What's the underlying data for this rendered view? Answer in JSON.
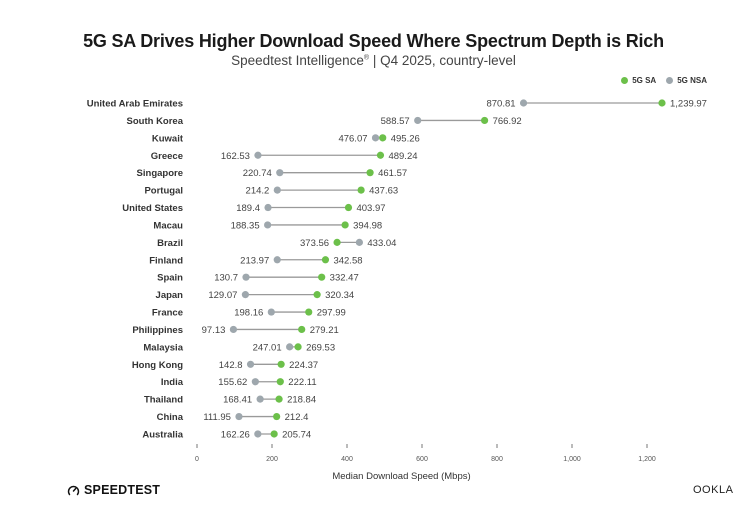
{
  "chart_data": {
    "type": "dumbbell",
    "title": "5G SA Drives Higher Download Speed Where Spectrum Depth is Rich",
    "subtitle_main": "Speedtest Intelligence",
    "subtitle_mark": "®",
    "subtitle_rest": " | Q4 2025, country-level",
    "xlabel": "Median Download Speed (Mbps)",
    "ylabel": "",
    "xlim": [
      0,
      1300
    ],
    "xticks": [
      0,
      200,
      400,
      600,
      800,
      1000,
      1200
    ],
    "xtick_labels": [
      "0",
      "200",
      "400",
      "600",
      "800",
      "1,000",
      "1,200"
    ],
    "legend": [
      {
        "name": "5G SA",
        "color": "#6cc04a"
      },
      {
        "name": "5G NSA",
        "color": "#9ea7ad"
      }
    ],
    "legend_position": "top-right",
    "categories": [
      "United Arab Emirates",
      "South Korea",
      "Kuwait",
      "Greece",
      "Singapore",
      "Portugal",
      "United States",
      "Macau",
      "Brazil",
      "Finland",
      "Spain",
      "Japan",
      "France",
      "Philippines",
      "Malaysia",
      "Hong Kong",
      "India",
      "Thailand",
      "China",
      "Australia"
    ],
    "series": [
      {
        "name": "5G SA",
        "color": "#6cc04a",
        "values": [
          1239.97,
          766.92,
          495.26,
          489.24,
          461.57,
          437.63,
          403.97,
          394.98,
          373.56,
          342.58,
          332.47,
          320.34,
          297.99,
          279.21,
          269.53,
          224.37,
          222.11,
          218.84,
          212.4,
          205.74
        ],
        "labels": [
          "1,239.97",
          "766.92",
          "495.26",
          "489.24",
          "461.57",
          "437.63",
          "403.97",
          "394.98",
          "373.56",
          "342.58",
          "332.47",
          "320.34",
          "297.99",
          "279.21",
          "269.53",
          "224.37",
          "222.11",
          "218.84",
          "212.4",
          "205.74"
        ]
      },
      {
        "name": "5G NSA",
        "color": "#9ea7ad",
        "values": [
          870.81,
          588.57,
          476.07,
          162.53,
          220.74,
          214.2,
          189.4,
          188.35,
          433.04,
          213.97,
          130.7,
          129.07,
          198.16,
          97.13,
          247.01,
          142.8,
          155.62,
          168.41,
          111.95,
          162.26
        ],
        "labels": [
          "870.81",
          "588.57",
          "476.07",
          "162.53",
          "220.74",
          "214.2",
          "189.4",
          "188.35",
          "433.04",
          "213.97",
          "130.7",
          "129.07",
          "198.16",
          "97.13",
          "247.01",
          "142.8",
          "155.62",
          "168.41",
          "111.95",
          "162.26"
        ]
      }
    ],
    "grid": false
  },
  "footer": {
    "brand_left": "SPEEDTEST",
    "brand_right": "OOKLA"
  }
}
